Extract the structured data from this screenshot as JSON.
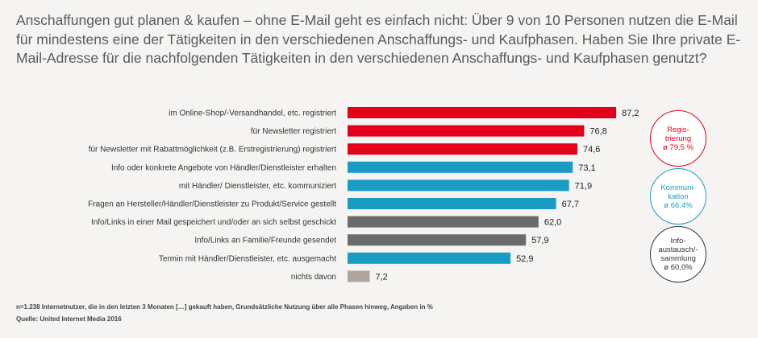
{
  "title": "Anschaffungen gut planen & kaufen – ohne E-Mail geht es einfach nicht: Über 9 von 10 Personen nutzen die E-Mail für mindestens eine der Tätigkeiten in den verschiedenen Anschaffungs- und Kaufphasen. Haben Sie Ihre private E-Mail-Adresse für die nachfolgenden Tätigkeiten in den verschiedenen Anschaffungs- und Kaufphasen genutzt?",
  "colors": {
    "registrierung": "#e2001a",
    "kommunikation": "#1a9bc4",
    "info": "#6b6b6b",
    "none": "#b0a59d"
  },
  "chart_data": {
    "type": "bar",
    "orientation": "horizontal",
    "categories": [
      "im Online-Shop/-Versandhandel, etc. registriert",
      "für Newsletter registriert",
      "für Newsletter mit Rabattmöglichkeit (z.B. Erstregistrierung) registriert",
      "Info oder konkrete Angebote von Händler/Dienstleister erhalten",
      "mit Händler/ Dienstleister, etc. kommuniziert",
      "Fragen an Hersteller/Händler/Dienstleister zu Produkt/Service gestellt",
      "Info/Links in einer Mail gespeichert und/oder an sich selbst geschickt",
      "Info/Links an Familie/Freunde gesendet",
      "Termin mit Händler/Dienstleister, etc. ausgemacht",
      "nichts davon"
    ],
    "values": [
      87.2,
      76.8,
      74.6,
      73.1,
      71.9,
      67.7,
      62.0,
      57.9,
      52.9,
      7.2
    ],
    "value_labels": [
      "87,2",
      "76,8",
      "74,6",
      "73,1",
      "71,9",
      "67,7",
      "62,0",
      "57,9",
      "52,9",
      "7,2"
    ],
    "groups": [
      "registrierung",
      "registrierung",
      "registrierung",
      "kommunikation",
      "kommunikation",
      "kommunikation",
      "info",
      "info",
      "kommunikation",
      "none"
    ],
    "xlim": [
      0,
      100
    ],
    "grid": false,
    "title": "",
    "xlabel": "",
    "ylabel": ""
  },
  "badges": [
    {
      "key": "registrierung",
      "lines": [
        "Regis-",
        "trierung",
        "ø 79,5 %"
      ],
      "color": "#e2001a"
    },
    {
      "key": "kommunikation",
      "lines": [
        "Kommuni-",
        "kation",
        "ø 66,4%"
      ],
      "color": "#1a9bc4"
    },
    {
      "key": "info",
      "lines": [
        "Info-",
        "austausch/-",
        "sammlung",
        "ø 60,0%"
      ],
      "color": "#333333"
    }
  ],
  "footnote": {
    "line1": "n=1.238 Internetnutzer, die in den letzten 3 Monaten […] gekauft haben, Grundsätzliche Nutzung über alle Phasen hinweg, Angaben in %",
    "line2": "Quelle: United Internet Media 2016"
  }
}
